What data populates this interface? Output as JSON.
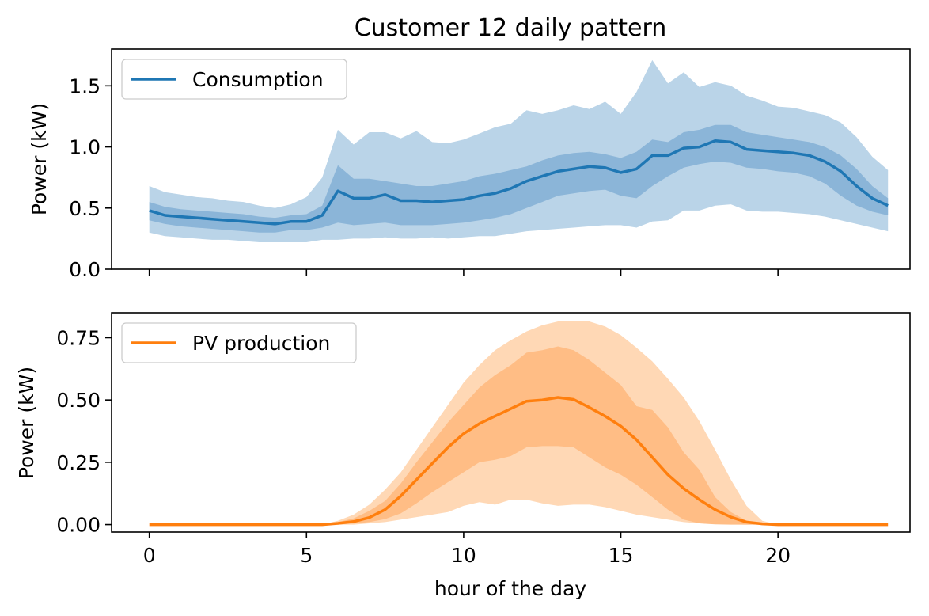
{
  "chart_data": [
    {
      "type": "line",
      "title": "Customer 12 daily pattern",
      "ylabel": "Power (kW)",
      "xlabel": "",
      "xlim": [
        -1.2,
        24.2
      ],
      "ylim": [
        0,
        1.8
      ],
      "xticks": [
        0,
        5,
        10,
        15,
        20
      ],
      "xtick_labels_visible": false,
      "yticks": [
        "0.0",
        "0.5",
        "1.0",
        "1.5"
      ],
      "legend": {
        "position": "top-left",
        "entries": [
          "Consumption"
        ]
      },
      "colors": {
        "line": "#1f77b4",
        "band_outer": "#bad4e8",
        "band_inner": "#8bb5d8"
      },
      "x": [
        0,
        0.5,
        1,
        1.5,
        2,
        2.5,
        3,
        3.5,
        4,
        4.5,
        5,
        5.5,
        6,
        6.5,
        7,
        7.5,
        8,
        8.5,
        9,
        9.5,
        10,
        10.5,
        11,
        11.5,
        12,
        12.5,
        13,
        13.5,
        14,
        14.5,
        15,
        15.5,
        16,
        16.5,
        17,
        17.5,
        18,
        18.5,
        19,
        19.5,
        20,
        20.5,
        21,
        21.5,
        22,
        22.5,
        23,
        23.5
      ],
      "series": [
        {
          "name": "Consumption",
          "values": [
            0.48,
            0.44,
            0.43,
            0.42,
            0.41,
            0.4,
            0.39,
            0.38,
            0.37,
            0.39,
            0.39,
            0.44,
            0.64,
            0.58,
            0.58,
            0.61,
            0.56,
            0.56,
            0.55,
            0.56,
            0.57,
            0.6,
            0.62,
            0.66,
            0.72,
            0.76,
            0.8,
            0.82,
            0.84,
            0.83,
            0.79,
            0.82,
            0.93,
            0.93,
            0.99,
            1.0,
            1.05,
            1.04,
            0.98,
            0.97,
            0.96,
            0.95,
            0.93,
            0.88,
            0.8,
            0.68,
            0.58,
            0.52
          ],
          "band_outer_low": [
            0.3,
            0.27,
            0.26,
            0.25,
            0.24,
            0.24,
            0.23,
            0.22,
            0.22,
            0.22,
            0.22,
            0.24,
            0.24,
            0.25,
            0.25,
            0.26,
            0.25,
            0.25,
            0.26,
            0.25,
            0.26,
            0.27,
            0.27,
            0.29,
            0.31,
            0.32,
            0.33,
            0.34,
            0.35,
            0.36,
            0.36,
            0.34,
            0.39,
            0.4,
            0.48,
            0.48,
            0.52,
            0.53,
            0.48,
            0.47,
            0.47,
            0.46,
            0.45,
            0.43,
            0.4,
            0.37,
            0.34,
            0.31
          ],
          "band_outer_high": [
            0.68,
            0.63,
            0.61,
            0.59,
            0.58,
            0.56,
            0.55,
            0.52,
            0.5,
            0.53,
            0.59,
            0.75,
            1.14,
            1.02,
            1.12,
            1.12,
            1.07,
            1.13,
            1.04,
            1.03,
            1.06,
            1.11,
            1.16,
            1.19,
            1.3,
            1.27,
            1.3,
            1.34,
            1.31,
            1.37,
            1.27,
            1.45,
            1.71,
            1.52,
            1.61,
            1.49,
            1.53,
            1.5,
            1.42,
            1.38,
            1.33,
            1.32,
            1.29,
            1.26,
            1.2,
            1.08,
            0.92,
            0.81
          ],
          "band_inner_low": [
            0.4,
            0.37,
            0.35,
            0.34,
            0.33,
            0.32,
            0.31,
            0.3,
            0.3,
            0.32,
            0.32,
            0.34,
            0.38,
            0.36,
            0.37,
            0.38,
            0.36,
            0.36,
            0.36,
            0.37,
            0.38,
            0.4,
            0.42,
            0.45,
            0.5,
            0.55,
            0.6,
            0.62,
            0.64,
            0.65,
            0.6,
            0.58,
            0.68,
            0.76,
            0.83,
            0.86,
            0.88,
            0.87,
            0.83,
            0.82,
            0.8,
            0.79,
            0.76,
            0.7,
            0.6,
            0.52,
            0.47,
            0.44
          ],
          "band_inner_high": [
            0.55,
            0.51,
            0.49,
            0.48,
            0.47,
            0.46,
            0.45,
            0.43,
            0.42,
            0.44,
            0.45,
            0.52,
            0.85,
            0.74,
            0.74,
            0.72,
            0.7,
            0.68,
            0.68,
            0.7,
            0.72,
            0.76,
            0.78,
            0.81,
            0.84,
            0.89,
            0.93,
            0.95,
            0.96,
            0.94,
            0.91,
            0.96,
            1.06,
            1.04,
            1.12,
            1.14,
            1.18,
            1.18,
            1.12,
            1.1,
            1.08,
            1.06,
            1.04,
            1.0,
            0.93,
            0.82,
            0.68,
            0.58
          ]
        }
      ]
    },
    {
      "type": "line",
      "title": "",
      "ylabel": "Power (kW)",
      "xlabel": "hour of the day",
      "xlim": [
        -1.2,
        24.2
      ],
      "ylim": [
        -0.03,
        0.85
      ],
      "xticks": [
        0,
        5,
        10,
        15,
        20
      ],
      "xtick_labels": [
        "0",
        "5",
        "10",
        "15",
        "20"
      ],
      "yticks": [
        "0.00",
        "0.25",
        "0.50",
        "0.75"
      ],
      "legend": {
        "position": "top-left",
        "entries": [
          "PV production"
        ]
      },
      "colors": {
        "line": "#ff7f0e",
        "band_outer": "#ffd8b5",
        "band_inner": "#ffbd85"
      },
      "x": [
        0,
        0.5,
        1,
        1.5,
        2,
        2.5,
        3,
        3.5,
        4,
        4.5,
        5,
        5.5,
        6,
        6.5,
        7,
        7.5,
        8,
        8.5,
        9,
        9.5,
        10,
        10.5,
        11,
        11.5,
        12,
        12.5,
        13,
        13.5,
        14,
        14.5,
        15,
        15.5,
        16,
        16.5,
        17,
        17.5,
        18,
        18.5,
        19,
        19.5,
        20,
        20.5,
        21,
        21.5,
        22,
        22.5,
        23,
        23.5
      ],
      "series": [
        {
          "name": "PV production",
          "values": [
            0,
            0,
            0,
            0,
            0,
            0,
            0,
            0,
            0,
            0,
            0,
            0,
            0.005,
            0.012,
            0.028,
            0.06,
            0.115,
            0.18,
            0.245,
            0.31,
            0.365,
            0.405,
            0.435,
            0.465,
            0.495,
            0.5,
            0.51,
            0.502,
            0.47,
            0.435,
            0.395,
            0.34,
            0.27,
            0.2,
            0.145,
            0.1,
            0.06,
            0.03,
            0.01,
            0.003,
            0,
            0,
            0,
            0,
            0,
            0,
            0,
            0
          ],
          "band_outer_low": [
            0,
            0,
            0,
            0,
            0,
            0,
            0,
            0,
            0,
            0,
            0,
            0,
            0,
            0,
            0.005,
            0.01,
            0.02,
            0.03,
            0.04,
            0.05,
            0.075,
            0.09,
            0.08,
            0.1,
            0.1,
            0.085,
            0.075,
            0.08,
            0.08,
            0.07,
            0.055,
            0.04,
            0.03,
            0.02,
            0.01,
            0.005,
            0.002,
            0.001,
            0,
            0,
            0,
            0,
            0,
            0,
            0,
            0,
            0,
            0
          ],
          "band_outer_high": [
            0,
            0,
            0,
            0,
            0,
            0,
            0,
            0,
            0,
            0,
            0,
            0,
            0.015,
            0.04,
            0.08,
            0.14,
            0.21,
            0.3,
            0.39,
            0.48,
            0.57,
            0.64,
            0.7,
            0.74,
            0.775,
            0.8,
            0.815,
            0.815,
            0.815,
            0.795,
            0.76,
            0.71,
            0.655,
            0.585,
            0.51,
            0.415,
            0.3,
            0.18,
            0.075,
            0.015,
            0,
            0,
            0,
            0,
            0,
            0,
            0,
            0
          ],
          "band_inner_low": [
            0,
            0,
            0,
            0,
            0,
            0,
            0,
            0,
            0,
            0,
            0,
            0,
            0.001,
            0.004,
            0.01,
            0.022,
            0.045,
            0.085,
            0.13,
            0.17,
            0.21,
            0.25,
            0.26,
            0.275,
            0.31,
            0.315,
            0.315,
            0.31,
            0.27,
            0.23,
            0.2,
            0.16,
            0.11,
            0.06,
            0.02,
            0.005,
            0.001,
            0,
            0,
            0,
            0,
            0,
            0,
            0,
            0,
            0,
            0,
            0
          ],
          "band_inner_high": [
            0,
            0,
            0,
            0,
            0,
            0,
            0,
            0,
            0,
            0,
            0,
            0,
            0.01,
            0.025,
            0.055,
            0.095,
            0.165,
            0.25,
            0.33,
            0.41,
            0.48,
            0.55,
            0.6,
            0.64,
            0.69,
            0.7,
            0.715,
            0.7,
            0.66,
            0.61,
            0.56,
            0.475,
            0.46,
            0.39,
            0.29,
            0.22,
            0.11,
            0.05,
            0.015,
            0.005,
            0,
            0,
            0,
            0,
            0,
            0,
            0,
            0
          ]
        }
      ]
    }
  ]
}
